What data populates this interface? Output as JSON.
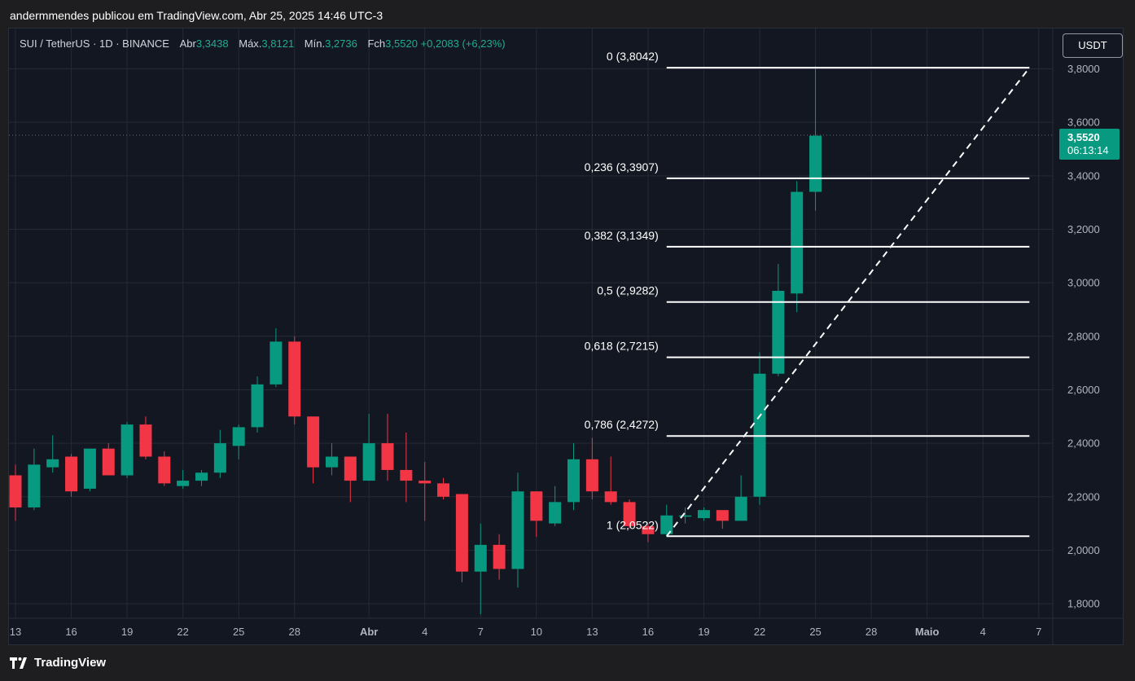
{
  "caption": "andermmendes publicou em TradingView.com, Abr 25, 2025 14:46 UTC-3",
  "symbol": {
    "name": "SUI / TetherUS · 1D · BINANCE",
    "open_label": "Abr",
    "open": "3,3438",
    "high_label": "Máx.",
    "high": "3,8121",
    "low_label": "Mín.",
    "low": "3,2736",
    "close_label": "Fch",
    "close": "3,5520",
    "change": "+0,2083 (+6,23%)"
  },
  "currency_button": "USDT",
  "last_price": {
    "price": "3,5520",
    "countdown": "06:13:14"
  },
  "brand": "TradingView",
  "colors": {
    "up": "#089981",
    "down": "#f23645",
    "background": "#131722",
    "grid": "#262a34",
    "fib_line": "#ffffff",
    "price_line": "#089981",
    "axis_text": "#b2b5be"
  },
  "chart_data": {
    "type": "candlestick",
    "ylim": [
      1.72,
      3.95
    ],
    "yticks": [
      "3,8000",
      "3,6000",
      "3,4000",
      "3,2000",
      "3,0000",
      "2,8000",
      "2,6000",
      "2,4000",
      "2,2000",
      "2,0000",
      "1,8000"
    ],
    "ytick_values": [
      3.8,
      3.6,
      3.4,
      3.2,
      3.0,
      2.8,
      2.6,
      2.4,
      2.2,
      2.0,
      1.8
    ],
    "xticks": [
      {
        "label": "13",
        "day": 0
      },
      {
        "label": "16",
        "day": 3
      },
      {
        "label": "19",
        "day": 6
      },
      {
        "label": "22",
        "day": 9
      },
      {
        "label": "25",
        "day": 12
      },
      {
        "label": "28",
        "day": 15
      },
      {
        "label": "Abr",
        "day": 19
      },
      {
        "label": "4",
        "day": 22
      },
      {
        "label": "7",
        "day": 25
      },
      {
        "label": "10",
        "day": 28
      },
      {
        "label": "13",
        "day": 31
      },
      {
        "label": "16",
        "day": 34
      },
      {
        "label": "19",
        "day": 37
      },
      {
        "label": "22",
        "day": 40
      },
      {
        "label": "25",
        "day": 43
      },
      {
        "label": "28",
        "day": 46
      },
      {
        "label": "Maio",
        "day": 49
      },
      {
        "label": "4",
        "day": 52
      },
      {
        "label": "7",
        "day": 55
      }
    ],
    "candles": [
      {
        "day": 0,
        "o": 2.28,
        "h": 2.32,
        "l": 2.11,
        "c": 2.16
      },
      {
        "day": 1,
        "o": 2.16,
        "h": 2.38,
        "l": 2.15,
        "c": 2.32
      },
      {
        "day": 2,
        "o": 2.31,
        "h": 2.43,
        "l": 2.29,
        "c": 2.34
      },
      {
        "day": 3,
        "o": 2.35,
        "h": 2.36,
        "l": 2.2,
        "c": 2.22
      },
      {
        "day": 4,
        "o": 2.23,
        "h": 2.38,
        "l": 2.22,
        "c": 2.38
      },
      {
        "day": 5,
        "o": 2.38,
        "h": 2.4,
        "l": 2.28,
        "c": 2.28
      },
      {
        "day": 6,
        "o": 2.28,
        "h": 2.48,
        "l": 2.27,
        "c": 2.47
      },
      {
        "day": 7,
        "o": 2.47,
        "h": 2.5,
        "l": 2.34,
        "c": 2.35
      },
      {
        "day": 8,
        "o": 2.35,
        "h": 2.37,
        "l": 2.24,
        "c": 2.25
      },
      {
        "day": 9,
        "o": 2.24,
        "h": 2.3,
        "l": 2.23,
        "c": 2.26
      },
      {
        "day": 10,
        "o": 2.26,
        "h": 2.3,
        "l": 2.24,
        "c": 2.29
      },
      {
        "day": 11,
        "o": 2.29,
        "h": 2.45,
        "l": 2.27,
        "c": 2.4
      },
      {
        "day": 12,
        "o": 2.39,
        "h": 2.47,
        "l": 2.34,
        "c": 2.46
      },
      {
        "day": 13,
        "o": 2.46,
        "h": 2.65,
        "l": 2.44,
        "c": 2.62
      },
      {
        "day": 14,
        "o": 2.62,
        "h": 2.83,
        "l": 2.61,
        "c": 2.78
      },
      {
        "day": 15,
        "o": 2.78,
        "h": 2.8,
        "l": 2.47,
        "c": 2.5
      },
      {
        "day": 16,
        "o": 2.5,
        "h": 2.5,
        "l": 2.25,
        "c": 2.31
      },
      {
        "day": 17,
        "o": 2.31,
        "h": 2.4,
        "l": 2.28,
        "c": 2.35
      },
      {
        "day": 18,
        "o": 2.35,
        "h": 2.35,
        "l": 2.18,
        "c": 2.26
      },
      {
        "day": 19,
        "o": 2.26,
        "h": 2.51,
        "l": 2.26,
        "c": 2.4
      },
      {
        "day": 20,
        "o": 2.4,
        "h": 2.51,
        "l": 2.26,
        "c": 2.3
      },
      {
        "day": 21,
        "o": 2.3,
        "h": 2.44,
        "l": 2.18,
        "c": 2.26
      },
      {
        "day": 22,
        "o": 2.26,
        "h": 2.33,
        "l": 2.11,
        "c": 2.25
      },
      {
        "day": 23,
        "o": 2.25,
        "h": 2.27,
        "l": 2.19,
        "c": 2.2
      },
      {
        "day": 24,
        "o": 2.21,
        "h": 2.21,
        "l": 1.88,
        "c": 1.92
      },
      {
        "day": 25,
        "o": 1.92,
        "h": 2.1,
        "l": 1.76,
        "c": 2.02
      },
      {
        "day": 26,
        "o": 2.02,
        "h": 2.06,
        "l": 1.89,
        "c": 1.93
      },
      {
        "day": 27,
        "o": 1.93,
        "h": 2.29,
        "l": 1.86,
        "c": 2.22
      },
      {
        "day": 28,
        "o": 2.22,
        "h": 2.22,
        "l": 2.05,
        "c": 2.11
      },
      {
        "day": 29,
        "o": 2.1,
        "h": 2.24,
        "l": 2.09,
        "c": 2.18
      },
      {
        "day": 30,
        "o": 2.18,
        "h": 2.4,
        "l": 2.15,
        "c": 2.34
      },
      {
        "day": 31,
        "o": 2.34,
        "h": 2.42,
        "l": 2.19,
        "c": 2.22
      },
      {
        "day": 32,
        "o": 2.22,
        "h": 2.35,
        "l": 2.17,
        "c": 2.18
      },
      {
        "day": 33,
        "o": 2.18,
        "h": 2.19,
        "l": 2.08,
        "c": 2.09
      },
      {
        "day": 34,
        "o": 2.09,
        "h": 2.1,
        "l": 2.03,
        "c": 2.06
      },
      {
        "day": 35,
        "o": 2.06,
        "h": 2.17,
        "l": 2.05,
        "c": 2.13
      },
      {
        "day": 36,
        "o": 2.13,
        "h": 2.16,
        "l": 2.1,
        "c": 2.13
      },
      {
        "day": 37,
        "o": 2.12,
        "h": 2.16,
        "l": 2.11,
        "c": 2.15
      },
      {
        "day": 38,
        "o": 2.15,
        "h": 2.15,
        "l": 2.08,
        "c": 2.11
      },
      {
        "day": 39,
        "o": 2.11,
        "h": 2.28,
        "l": 2.11,
        "c": 2.2
      },
      {
        "day": 40,
        "o": 2.2,
        "h": 2.74,
        "l": 2.17,
        "c": 2.66
      },
      {
        "day": 41,
        "o": 2.66,
        "h": 3.07,
        "l": 2.65,
        "c": 2.97
      },
      {
        "day": 42,
        "o": 2.96,
        "h": 3.38,
        "l": 2.89,
        "c": 3.34
      },
      {
        "day": 43,
        "o": 3.34,
        "h": 3.81,
        "l": 3.27,
        "c": 3.55
      }
    ],
    "fib_levels": [
      {
        "label": "0 (3,8042)",
        "value": 3.8042
      },
      {
        "label": "0,236 (3,3907)",
        "value": 3.3907
      },
      {
        "label": "0,382 (3,1349)",
        "value": 3.1349
      },
      {
        "label": "0,5 (2,9282)",
        "value": 2.9282
      },
      {
        "label": "0,618 (2,7215)",
        "value": 2.7215
      },
      {
        "label": "0,786 (2,4272)",
        "value": 2.4272
      },
      {
        "label": "1 (2,0522)",
        "value": 2.0522
      }
    ],
    "fib_range_days": [
      35,
      54.5
    ],
    "trend_line": {
      "from": {
        "day": 35,
        "value": 2.0522
      },
      "to": {
        "day": 54.5,
        "value": 3.8042
      }
    },
    "last_price_value": 3.552
  }
}
